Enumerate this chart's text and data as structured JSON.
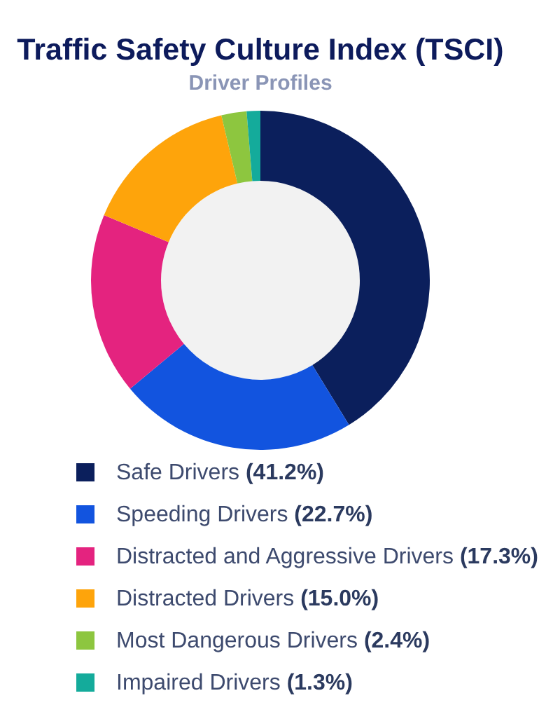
{
  "chart_data": {
    "type": "donut",
    "title": "Traffic Safety Culture Index (TSCI)",
    "subtitle": "Driver Profiles",
    "categories": [
      "Safe Drivers",
      "Speeding Drivers",
      "Distracted and Aggressive Drivers",
      "Distracted Drivers",
      "Most Dangerous Drivers",
      "Impaired Drivers"
    ],
    "values": [
      41.2,
      22.7,
      17.3,
      15.0,
      2.4,
      1.3
    ],
    "value_labels": [
      "(41.2%)",
      "(22.7%)",
      "(17.3%)",
      "(15.0%)",
      "(2.4%)",
      "(1.3%)"
    ],
    "colors": [
      "#0b1f5c",
      "#1254df",
      "#e4237f",
      "#fea40b",
      "#8dc63f",
      "#14ab9b"
    ],
    "legend": "bottom"
  }
}
